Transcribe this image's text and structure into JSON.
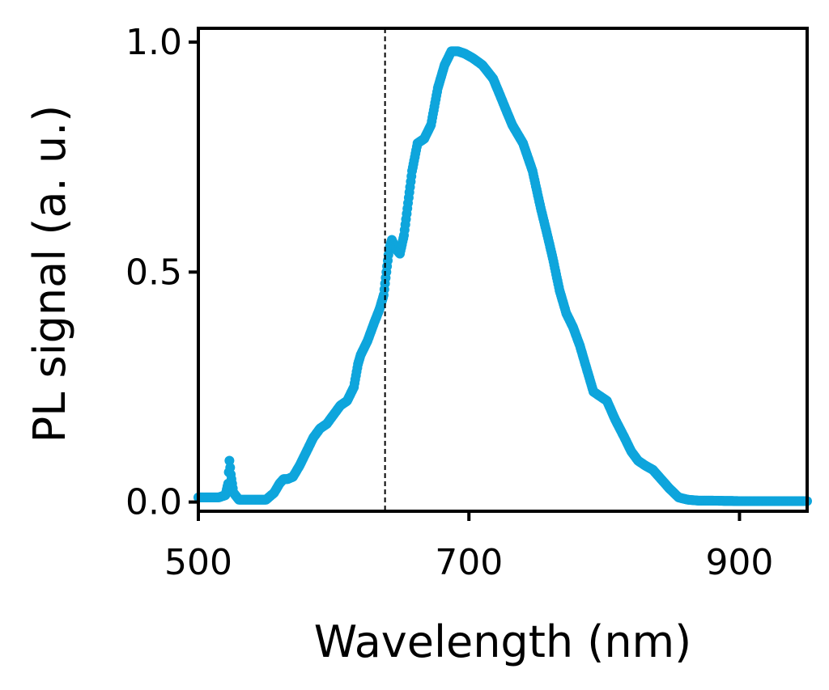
{
  "chart_data": {
    "type": "scatter",
    "xlabel": "Wavelength (nm)",
    "ylabel": "PL signal (a. u.)",
    "xlim": [
      500,
      950
    ],
    "ylim": [
      -0.02,
      1.03
    ],
    "xticks": [
      500,
      700,
      900
    ],
    "xtick_labels": [
      "500",
      "700",
      "900"
    ],
    "yticks": [
      0.0,
      0.5,
      1.0
    ],
    "ytick_labels": [
      "0.0",
      "0.5",
      "1.0"
    ],
    "marker_color": "#0ea5dc",
    "grid": false,
    "reference_line": {
      "x": 638,
      "style": "dashed",
      "color": "#000000"
    },
    "series": [
      {
        "points": [
          [
            500,
            0.01
          ],
          [
            505,
            0.01
          ],
          [
            510,
            0.01
          ],
          [
            515,
            0.01
          ],
          [
            520,
            0.015
          ],
          [
            522,
            0.04
          ],
          [
            523,
            0.09
          ],
          [
            524,
            0.06
          ],
          [
            526,
            0.02
          ],
          [
            530,
            0.005
          ],
          [
            540,
            0.005
          ],
          [
            550,
            0.005
          ],
          [
            556,
            0.02
          ],
          [
            560,
            0.04
          ],
          [
            563,
            0.05
          ],
          [
            566,
            0.05
          ],
          [
            570,
            0.055
          ],
          [
            575,
            0.08
          ],
          [
            580,
            0.11
          ],
          [
            585,
            0.14
          ],
          [
            590,
            0.16
          ],
          [
            595,
            0.17
          ],
          [
            600,
            0.19
          ],
          [
            605,
            0.21
          ],
          [
            610,
            0.22
          ],
          [
            615,
            0.25
          ],
          [
            618,
            0.3
          ],
          [
            620,
            0.32
          ],
          [
            625,
            0.35
          ],
          [
            630,
            0.39
          ],
          [
            634,
            0.42
          ],
          [
            637,
            0.45
          ],
          [
            639,
            0.5
          ],
          [
            641,
            0.55
          ],
          [
            643,
            0.57
          ],
          [
            646,
            0.55
          ],
          [
            649,
            0.54
          ],
          [
            652,
            0.58
          ],
          [
            655,
            0.65
          ],
          [
            658,
            0.72
          ],
          [
            662,
            0.78
          ],
          [
            667,
            0.79
          ],
          [
            672,
            0.82
          ],
          [
            677,
            0.9
          ],
          [
            682,
            0.95
          ],
          [
            687,
            0.98
          ],
          [
            692,
            0.98
          ],
          [
            697,
            0.975
          ],
          [
            703,
            0.965
          ],
          [
            710,
            0.95
          ],
          [
            718,
            0.92
          ],
          [
            725,
            0.87
          ],
          [
            732,
            0.82
          ],
          [
            740,
            0.78
          ],
          [
            747,
            0.72
          ],
          [
            753,
            0.64
          ],
          [
            758,
            0.58
          ],
          [
            762,
            0.53
          ],
          [
            767,
            0.46
          ],
          [
            772,
            0.41
          ],
          [
            777,
            0.38
          ],
          [
            782,
            0.34
          ],
          [
            787,
            0.29
          ],
          [
            792,
            0.24
          ],
          [
            797,
            0.23
          ],
          [
            802,
            0.22
          ],
          [
            808,
            0.18
          ],
          [
            815,
            0.14
          ],
          [
            820,
            0.11
          ],
          [
            825,
            0.09
          ],
          [
            830,
            0.08
          ],
          [
            836,
            0.07
          ],
          [
            842,
            0.05
          ],
          [
            848,
            0.03
          ],
          [
            855,
            0.01
          ],
          [
            862,
            0.005
          ],
          [
            870,
            0.003
          ],
          [
            880,
            0.003
          ],
          [
            900,
            0.002
          ],
          [
            920,
            0.002
          ],
          [
            950,
            0.002
          ]
        ]
      }
    ]
  }
}
